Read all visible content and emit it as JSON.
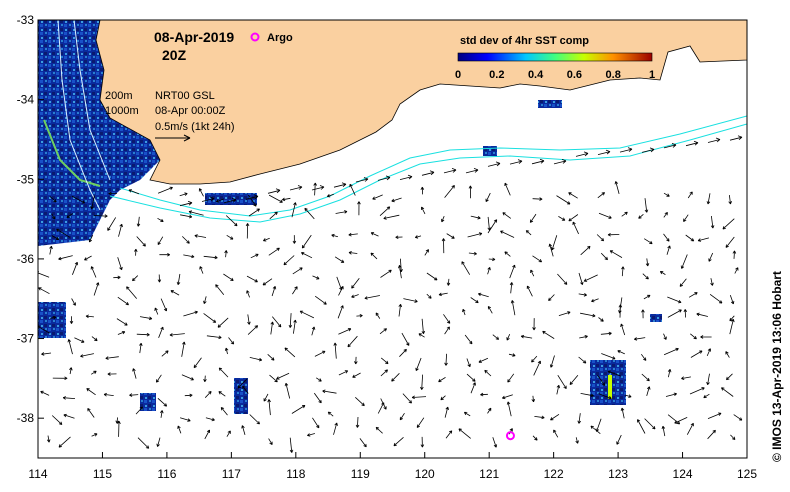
{
  "map": {
    "date_label": "08-Apr-2019",
    "hour_label": "20Z",
    "argo_label": "Argo",
    "depth_200": "200m",
    "depth_1000": "1000m",
    "model_label": "NRT00 GSL",
    "model_time": "08-Apr 00:00Z",
    "scale_label": "0.5m/s (1kt 24h)",
    "credit": "© IMOS 13-Apr-2019 13:06 Hobart",
    "argo_float": {
      "lon": 121.33,
      "lat": -38.22
    },
    "colors": {
      "land": "#fad0a0",
      "argo": "#ff00ff",
      "contour": "#19e0e0",
      "arrow": "#000000"
    }
  },
  "colorbar": {
    "title": "std dev of 4hr SST comp",
    "ticks": [
      "0",
      "0.2",
      "0.4",
      "0.6",
      "0.8",
      "1"
    ],
    "range": [
      0,
      1
    ]
  },
  "axes": {
    "x_ticks": [
      "114",
      "115",
      "116",
      "117",
      "118",
      "119",
      "120",
      "121",
      "122",
      "123",
      "124",
      "125"
    ],
    "y_ticks": [
      "-33",
      "-34",
      "-35",
      "-36",
      "-37",
      "-38"
    ],
    "x_range": [
      114,
      125
    ],
    "y_range": [
      -38.5,
      -33
    ]
  }
}
